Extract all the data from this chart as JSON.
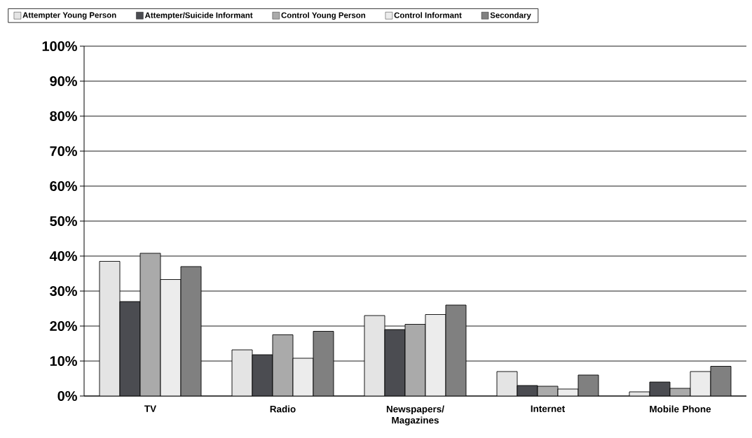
{
  "chart_data": {
    "type": "bar",
    "categories": [
      "TV",
      "Radio",
      "Newspapers/ Magazines",
      "Internet",
      "Mobile Phone"
    ],
    "series": [
      {
        "name": "Attempter Young Person",
        "color": "#e4e4e4",
        "values": [
          38.5,
          13.2,
          23,
          7,
          1.2
        ]
      },
      {
        "name": "Attempter/Suicide Informant",
        "color": "#4b4c51",
        "values": [
          27,
          11.8,
          19,
          3,
          4
        ]
      },
      {
        "name": "Control Young Person",
        "color": "#aaaaaa",
        "values": [
          40.8,
          17.5,
          20.5,
          2.8,
          2.2
        ]
      },
      {
        "name": "Control Informant",
        "color": "#ececec",
        "values": [
          33.3,
          10.8,
          23.3,
          2,
          7
        ]
      },
      {
        "name": "Secondary",
        "color": "#808080",
        "values": [
          37,
          18.5,
          26,
          6,
          8.5
        ]
      }
    ],
    "ylim": [
      0,
      100
    ],
    "yticks": [
      {
        "value": 0,
        "label": "0%"
      },
      {
        "value": 10,
        "label": "10%"
      },
      {
        "value": 20,
        "label": "20%"
      },
      {
        "value": 30,
        "label": "30%"
      },
      {
        "value": 40,
        "label": "40%"
      },
      {
        "value": 50,
        "label": "50%"
      },
      {
        "value": 60,
        "label": "60%"
      },
      {
        "value": 70,
        "label": "70%"
      },
      {
        "value": 80,
        "label": "80%"
      },
      {
        "value": 90,
        "label": "90%"
      },
      {
        "value": 100,
        "label": "100%"
      }
    ],
    "grid": "y",
    "legend": "top"
  }
}
